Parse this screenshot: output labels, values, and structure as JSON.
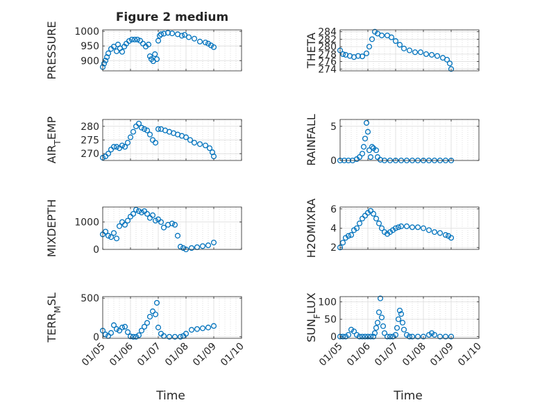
{
  "figure": {
    "title": "Figure 2 medium"
  },
  "chart_data": [
    {
      "type": "scatter",
      "ylabel": "PRESSURE",
      "yticks": [
        900,
        950,
        1000
      ],
      "ylim": [
        865,
        1005
      ],
      "xlim": [
        0,
        5
      ],
      "xticks": [
        0,
        1,
        2,
        3,
        4,
        5
      ],
      "xticklabels": [
        "01/05",
        "01/06",
        "01/07",
        "01/08",
        "01/09",
        "01/10"
      ],
      "xlabel": "",
      "grid": true,
      "marker_color": "#0072BD",
      "points": [
        [
          0,
          878
        ],
        [
          0.05,
          890
        ],
        [
          0.1,
          900
        ],
        [
          0.15,
          912
        ],
        [
          0.2,
          925
        ],
        [
          0.3,
          940
        ],
        [
          0.4,
          948
        ],
        [
          0.5,
          932
        ],
        [
          0.55,
          955
        ],
        [
          0.62,
          942
        ],
        [
          0.7,
          930
        ],
        [
          0.78,
          948
        ],
        [
          0.85,
          958
        ],
        [
          0.95,
          967
        ],
        [
          1.05,
          972
        ],
        [
          1.15,
          972
        ],
        [
          1.25,
          972
        ],
        [
          1.35,
          968
        ],
        [
          1.45,
          958
        ],
        [
          1.55,
          948
        ],
        [
          1.65,
          955
        ],
        [
          1.7,
          915
        ],
        [
          1.75,
          905
        ],
        [
          1.82,
          898
        ],
        [
          1.88,
          922
        ],
        [
          1.95,
          905
        ],
        [
          2.0,
          968
        ],
        [
          2.05,
          985
        ],
        [
          2.1,
          990
        ],
        [
          2.2,
          992
        ],
        [
          2.35,
          995
        ],
        [
          2.5,
          993
        ],
        [
          2.7,
          990
        ],
        [
          2.85,
          985
        ],
        [
          2.95,
          988
        ],
        [
          3.1,
          980
        ],
        [
          3.3,
          975
        ],
        [
          3.5,
          965
        ],
        [
          3.7,
          962
        ],
        [
          3.8,
          958
        ],
        [
          3.9,
          952
        ],
        [
          4.0,
          946
        ]
      ]
    },
    {
      "type": "scatter",
      "ylabel": "THETA",
      "yticks": [
        274,
        276,
        278,
        280,
        282,
        284
      ],
      "ylim": [
        273.5,
        284.5
      ],
      "xlim": [
        0,
        5
      ],
      "xticks": [
        0,
        1,
        2,
        3,
        4,
        5
      ],
      "xticklabels": [
        "01/05",
        "01/06",
        "01/07",
        "01/08",
        "01/09",
        "01/10"
      ],
      "xlabel": "",
      "grid": true,
      "marker_color": "#0072BD",
      "points": [
        [
          0,
          279
        ],
        [
          0.1,
          278
        ],
        [
          0.2,
          277.8
        ],
        [
          0.35,
          277.5
        ],
        [
          0.5,
          277.2
        ],
        [
          0.65,
          277.5
        ],
        [
          0.8,
          277.4
        ],
        [
          0.95,
          278.2
        ],
        [
          1.05,
          280
        ],
        [
          1.15,
          282
        ],
        [
          1.25,
          284
        ],
        [
          1.35,
          283.5
        ],
        [
          1.5,
          283
        ],
        [
          1.7,
          283
        ],
        [
          1.85,
          282.5
        ],
        [
          2.0,
          281.5
        ],
        [
          2.15,
          280.5
        ],
        [
          2.3,
          279.5
        ],
        [
          2.5,
          279
        ],
        [
          2.7,
          278.5
        ],
        [
          2.9,
          278.5
        ],
        [
          3.1,
          278
        ],
        [
          3.3,
          277.8
        ],
        [
          3.5,
          277.5
        ],
        [
          3.7,
          277
        ],
        [
          3.85,
          276.5
        ],
        [
          3.95,
          275.5
        ],
        [
          4.0,
          274
        ]
      ]
    },
    {
      "type": "scatter",
      "ylabel": "AIR_TEMP",
      "yticks": [
        270,
        275,
        280
      ],
      "ylim": [
        267.5,
        282.5
      ],
      "xlim": [
        0,
        5
      ],
      "xticks": [
        0,
        1,
        2,
        3,
        4,
        5
      ],
      "xticklabels": [
        "01/05",
        "01/06",
        "01/07",
        "01/08",
        "01/09",
        "01/10"
      ],
      "xlabel": "",
      "grid": true,
      "marker_color": "#0072BD",
      "points": [
        [
          0,
          268.5
        ],
        [
          0.1,
          269
        ],
        [
          0.2,
          270
        ],
        [
          0.3,
          271.5
        ],
        [
          0.4,
          272.5
        ],
        [
          0.5,
          272.5
        ],
        [
          0.6,
          272
        ],
        [
          0.7,
          273
        ],
        [
          0.8,
          272.5
        ],
        [
          0.9,
          274
        ],
        [
          1.0,
          276
        ],
        [
          1.1,
          278
        ],
        [
          1.2,
          280
        ],
        [
          1.3,
          281
        ],
        [
          1.4,
          279.5
        ],
        [
          1.5,
          279
        ],
        [
          1.6,
          278.5
        ],
        [
          1.7,
          277
        ],
        [
          1.8,
          275
        ],
        [
          1.9,
          274
        ],
        [
          2.0,
          279
        ],
        [
          2.1,
          279
        ],
        [
          2.25,
          278.5
        ],
        [
          2.4,
          278
        ],
        [
          2.55,
          277.5
        ],
        [
          2.7,
          277
        ],
        [
          2.85,
          276.5
        ],
        [
          3.0,
          276
        ],
        [
          3.15,
          275
        ],
        [
          3.3,
          274
        ],
        [
          3.5,
          273.5
        ],
        [
          3.7,
          273
        ],
        [
          3.85,
          272
        ],
        [
          3.95,
          270.5
        ],
        [
          4.0,
          269
        ]
      ]
    },
    {
      "type": "scatter",
      "ylabel": "RAINFALL",
      "yticks": [
        0,
        5
      ],
      "ylim": [
        0,
        6
      ],
      "xlim": [
        0,
        5
      ],
      "xticks": [
        0,
        1,
        2,
        3,
        4,
        5
      ],
      "xticklabels": [
        "01/05",
        "01/06",
        "01/07",
        "01/08",
        "01/09",
        "01/10"
      ],
      "xlabel": "",
      "grid": true,
      "marker_color": "#0072BD",
      "points": [
        [
          0,
          0
        ],
        [
          0.15,
          0
        ],
        [
          0.3,
          0
        ],
        [
          0.45,
          0
        ],
        [
          0.6,
          0.2
        ],
        [
          0.7,
          0.5
        ],
        [
          0.8,
          1
        ],
        [
          0.85,
          2
        ],
        [
          0.9,
          3.2
        ],
        [
          0.95,
          5.5
        ],
        [
          1.0,
          4.2
        ],
        [
          1.05,
          1.5
        ],
        [
          1.1,
          0.5
        ],
        [
          1.15,
          2
        ],
        [
          1.2,
          1.8
        ],
        [
          1.3,
          1.5
        ],
        [
          1.35,
          0.5
        ],
        [
          1.45,
          0.1
        ],
        [
          1.6,
          0
        ],
        [
          1.8,
          0
        ],
        [
          2.0,
          0
        ],
        [
          2.2,
          0
        ],
        [
          2.4,
          0
        ],
        [
          2.6,
          0
        ],
        [
          2.8,
          0
        ],
        [
          3.0,
          0
        ],
        [
          3.2,
          0
        ],
        [
          3.4,
          0
        ],
        [
          3.6,
          0
        ],
        [
          3.8,
          0
        ],
        [
          4.0,
          0
        ]
      ]
    },
    {
      "type": "scatter",
      "ylabel": "MIXDEPTH",
      "yticks": [
        0,
        1000
      ],
      "ylim": [
        0,
        1550
      ],
      "xlim": [
        0,
        5
      ],
      "xticks": [
        0,
        1,
        2,
        3,
        4,
        5
      ],
      "xticklabels": [
        "01/05",
        "01/06",
        "01/07",
        "01/08",
        "01/09",
        "01/10"
      ],
      "xlabel": "",
      "grid": true,
      "marker_color": "#0072BD",
      "points": [
        [
          0,
          550
        ],
        [
          0.1,
          650
        ],
        [
          0.2,
          500
        ],
        [
          0.3,
          450
        ],
        [
          0.4,
          600
        ],
        [
          0.5,
          400
        ],
        [
          0.6,
          850
        ],
        [
          0.7,
          1000
        ],
        [
          0.8,
          900
        ],
        [
          0.9,
          1050
        ],
        [
          1.0,
          1200
        ],
        [
          1.1,
          1300
        ],
        [
          1.2,
          1450
        ],
        [
          1.3,
          1400
        ],
        [
          1.4,
          1350
        ],
        [
          1.5,
          1400
        ],
        [
          1.6,
          1300
        ],
        [
          1.7,
          1150
        ],
        [
          1.8,
          1250
        ],
        [
          1.9,
          1050
        ],
        [
          2.0,
          1100
        ],
        [
          2.1,
          1000
        ],
        [
          2.2,
          800
        ],
        [
          2.35,
          900
        ],
        [
          2.5,
          950
        ],
        [
          2.6,
          900
        ],
        [
          2.7,
          500
        ],
        [
          2.8,
          100
        ],
        [
          2.9,
          50
        ],
        [
          3.0,
          0
        ],
        [
          3.2,
          50
        ],
        [
          3.4,
          80
        ],
        [
          3.6,
          120
        ],
        [
          3.8,
          150
        ],
        [
          4.0,
          250
        ]
      ]
    },
    {
      "type": "scatter",
      "ylabel": "H2OMIXRA",
      "yticks": [
        2,
        4,
        6
      ],
      "ylim": [
        1.8,
        6.2
      ],
      "xlim": [
        0,
        5
      ],
      "xticks": [
        0,
        1,
        2,
        3,
        4,
        5
      ],
      "xticklabels": [
        "01/05",
        "01/06",
        "01/07",
        "01/08",
        "01/09",
        "01/10"
      ],
      "xlabel": "",
      "grid": true,
      "marker_color": "#0072BD",
      "points": [
        [
          0,
          2
        ],
        [
          0.1,
          2.5
        ],
        [
          0.2,
          3
        ],
        [
          0.3,
          3.2
        ],
        [
          0.4,
          3.3
        ],
        [
          0.5,
          3.8
        ],
        [
          0.6,
          4
        ],
        [
          0.7,
          4.5
        ],
        [
          0.8,
          5
        ],
        [
          0.9,
          5.3
        ],
        [
          1.0,
          5.6
        ],
        [
          1.1,
          5.8
        ],
        [
          1.2,
          5.5
        ],
        [
          1.3,
          5
        ],
        [
          1.4,
          4.5
        ],
        [
          1.5,
          4
        ],
        [
          1.6,
          3.6
        ],
        [
          1.7,
          3.4
        ],
        [
          1.8,
          3.6
        ],
        [
          1.9,
          3.8
        ],
        [
          2.0,
          4
        ],
        [
          2.1,
          4.1
        ],
        [
          2.2,
          4.2
        ],
        [
          2.4,
          4.2
        ],
        [
          2.6,
          4.1
        ],
        [
          2.8,
          4.1
        ],
        [
          3.0,
          4.0
        ],
        [
          3.2,
          3.8
        ],
        [
          3.4,
          3.6
        ],
        [
          3.6,
          3.5
        ],
        [
          3.8,
          3.3
        ],
        [
          3.9,
          3.2
        ],
        [
          4.0,
          3.0
        ]
      ]
    },
    {
      "type": "scatter",
      "ylabel": "TERR_MSL",
      "yticks": [
        0,
        500
      ],
      "ylim": [
        -20,
        520
      ],
      "xlim": [
        0,
        5
      ],
      "xticks": [
        0,
        1,
        2,
        3,
        4,
        5
      ],
      "xticklabels": [
        "01/05",
        "01/06",
        "01/07",
        "01/08",
        "01/09",
        "01/10"
      ],
      "xlabel": "Time",
      "grid": true,
      "marker_color": "#0072BD",
      "points": [
        [
          0,
          80
        ],
        [
          0.1,
          30
        ],
        [
          0.2,
          10
        ],
        [
          0.3,
          50
        ],
        [
          0.4,
          150
        ],
        [
          0.5,
          100
        ],
        [
          0.6,
          80
        ],
        [
          0.7,
          120
        ],
        [
          0.8,
          130
        ],
        [
          0.9,
          60
        ],
        [
          1.0,
          5
        ],
        [
          1.1,
          0
        ],
        [
          1.2,
          0
        ],
        [
          1.3,
          20
        ],
        [
          1.4,
          80
        ],
        [
          1.5,
          130
        ],
        [
          1.6,
          180
        ],
        [
          1.7,
          260
        ],
        [
          1.8,
          330
        ],
        [
          1.9,
          290
        ],
        [
          1.95,
          440
        ],
        [
          2.0,
          120
        ],
        [
          2.1,
          40
        ],
        [
          2.2,
          10
        ],
        [
          2.4,
          0
        ],
        [
          2.6,
          0
        ],
        [
          2.8,
          0
        ],
        [
          2.9,
          10
        ],
        [
          3.0,
          40
        ],
        [
          3.2,
          90
        ],
        [
          3.4,
          100
        ],
        [
          3.6,
          110
        ],
        [
          3.8,
          120
        ],
        [
          4.0,
          140
        ]
      ]
    },
    {
      "type": "scatter",
      "ylabel": "SUN_FLUX",
      "yticks": [
        0,
        50,
        100
      ],
      "ylim": [
        -5,
        115
      ],
      "xlim": [
        0,
        5
      ],
      "xticks": [
        0,
        1,
        2,
        3,
        4,
        5
      ],
      "xticklabels": [
        "01/05",
        "01/06",
        "01/07",
        "01/08",
        "01/09",
        "01/10"
      ],
      "xlabel": "Time",
      "grid": true,
      "marker_color": "#0072BD",
      "points": [
        [
          0,
          0
        ],
        [
          0.1,
          0
        ],
        [
          0.2,
          0
        ],
        [
          0.3,
          5
        ],
        [
          0.4,
          20
        ],
        [
          0.5,
          15
        ],
        [
          0.6,
          5
        ],
        [
          0.7,
          0
        ],
        [
          0.8,
          0
        ],
        [
          0.9,
          0
        ],
        [
          1.0,
          0
        ],
        [
          1.1,
          0
        ],
        [
          1.2,
          0
        ],
        [
          1.25,
          10
        ],
        [
          1.3,
          25
        ],
        [
          1.35,
          40
        ],
        [
          1.4,
          70
        ],
        [
          1.45,
          110
        ],
        [
          1.5,
          55
        ],
        [
          1.55,
          30
        ],
        [
          1.6,
          10
        ],
        [
          1.7,
          0
        ],
        [
          1.8,
          0
        ],
        [
          1.9,
          0
        ],
        [
          2.0,
          5
        ],
        [
          2.05,
          25
        ],
        [
          2.1,
          50
        ],
        [
          2.15,
          75
        ],
        [
          2.2,
          65
        ],
        [
          2.25,
          40
        ],
        [
          2.3,
          20
        ],
        [
          2.4,
          5
        ],
        [
          2.5,
          0
        ],
        [
          2.6,
          0
        ],
        [
          2.8,
          0
        ],
        [
          3.0,
          0
        ],
        [
          3.2,
          5
        ],
        [
          3.3,
          10
        ],
        [
          3.4,
          5
        ],
        [
          3.6,
          0
        ],
        [
          3.8,
          0
        ],
        [
          4.0,
          0
        ]
      ]
    }
  ]
}
